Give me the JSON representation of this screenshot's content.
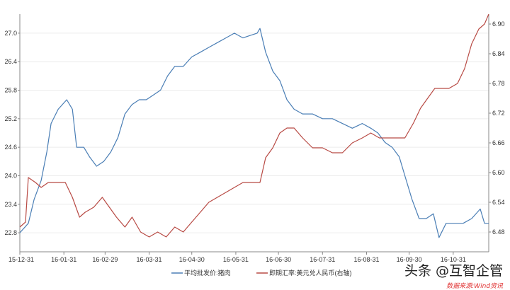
{
  "chart_data": {
    "type": "line",
    "title": "",
    "xlabel": "",
    "ylabel": "",
    "x_start": "2015-12-31",
    "x_end": "2016-11-25",
    "x_tick_labels": [
      "15-12-31",
      "16-01-31",
      "16-02-29",
      "16-03-31",
      "16-04-30",
      "16-05-31",
      "16-06-30",
      "16-07-31",
      "16-08-31",
      "16-09-30",
      "16-10-31"
    ],
    "x_tick_dates": [
      "2015-12-31",
      "2016-01-31",
      "2016-02-29",
      "2016-03-31",
      "2016-04-30",
      "2016-05-31",
      "2016-06-30",
      "2016-07-31",
      "2016-08-31",
      "2016-09-30",
      "2016-10-31"
    ],
    "y_left": {
      "ticks": [
        "22.8",
        "23.4",
        "24.0",
        "24.6",
        "25.2",
        "25.8",
        "26.4",
        "27.0"
      ],
      "range": [
        22.4,
        27.4
      ]
    },
    "y_right": {
      "ticks": [
        "6.48",
        "6.54",
        "6.60",
        "6.66",
        "6.72",
        "6.78",
        "6.84",
        "6.90"
      ],
      "range": [
        6.44,
        6.92
      ]
    },
    "grid": true,
    "legend_position": "bottom",
    "series": [
      {
        "name": "平均批发价:猪肉",
        "axis": "left",
        "color": "#4a7eb5",
        "points": [
          [
            "2015-12-31",
            22.8
          ],
          [
            "2016-01-06",
            23.0
          ],
          [
            "2016-01-10",
            23.5
          ],
          [
            "2016-01-15",
            23.9
          ],
          [
            "2016-01-19",
            24.5
          ],
          [
            "2016-01-22",
            25.1
          ],
          [
            "2016-01-27",
            25.4
          ],
          [
            "2016-02-02",
            25.6
          ],
          [
            "2016-02-06",
            25.4
          ],
          [
            "2016-02-09",
            24.6
          ],
          [
            "2016-02-14",
            24.6
          ],
          [
            "2016-02-18",
            24.4
          ],
          [
            "2016-02-23",
            24.2
          ],
          [
            "2016-02-28",
            24.3
          ],
          [
            "2016-03-04",
            24.5
          ],
          [
            "2016-03-09",
            24.8
          ],
          [
            "2016-03-14",
            25.3
          ],
          [
            "2016-03-19",
            25.5
          ],
          [
            "2016-03-24",
            25.6
          ],
          [
            "2016-03-29",
            25.6
          ],
          [
            "2016-04-03",
            25.7
          ],
          [
            "2016-04-08",
            25.8
          ],
          [
            "2016-04-13",
            26.1
          ],
          [
            "2016-04-18",
            26.3
          ],
          [
            "2016-04-24",
            26.3
          ],
          [
            "2016-04-30",
            26.5
          ],
          [
            "2016-05-06",
            26.6
          ],
          [
            "2016-05-12",
            26.7
          ],
          [
            "2016-05-18",
            26.8
          ],
          [
            "2016-05-24",
            26.9
          ],
          [
            "2016-05-30",
            27.0
          ],
          [
            "2016-06-05",
            26.9
          ],
          [
            "2016-06-10",
            26.95
          ],
          [
            "2016-06-15",
            27.0
          ],
          [
            "2016-06-17",
            27.1
          ],
          [
            "2016-06-21",
            26.6
          ],
          [
            "2016-06-26",
            26.2
          ],
          [
            "2016-07-01",
            26.0
          ],
          [
            "2016-07-06",
            25.6
          ],
          [
            "2016-07-11",
            25.4
          ],
          [
            "2016-07-17",
            25.3
          ],
          [
            "2016-07-24",
            25.3
          ],
          [
            "2016-07-31",
            25.2
          ],
          [
            "2016-08-07",
            25.2
          ],
          [
            "2016-08-14",
            25.1
          ],
          [
            "2016-08-21",
            25.0
          ],
          [
            "2016-08-28",
            25.1
          ],
          [
            "2016-09-03",
            25.0
          ],
          [
            "2016-09-08",
            24.9
          ],
          [
            "2016-09-13",
            24.7
          ],
          [
            "2016-09-18",
            24.6
          ],
          [
            "2016-09-23",
            24.4
          ],
          [
            "2016-09-27",
            24.0
          ],
          [
            "2016-10-02",
            23.5
          ],
          [
            "2016-10-07",
            23.1
          ],
          [
            "2016-10-12",
            23.1
          ],
          [
            "2016-10-17",
            23.2
          ],
          [
            "2016-10-21",
            22.7
          ],
          [
            "2016-10-26",
            23.0
          ],
          [
            "2016-11-01",
            23.0
          ],
          [
            "2016-11-07",
            23.0
          ],
          [
            "2016-11-13",
            23.1
          ],
          [
            "2016-11-19",
            23.3
          ],
          [
            "2016-11-22",
            23.0
          ],
          [
            "2016-11-25",
            23.0
          ]
        ]
      },
      {
        "name": "即期汇率:美元兑人民币(右轴)",
        "axis": "right",
        "color": "#b84a44",
        "points": [
          [
            "2015-12-31",
            6.49
          ],
          [
            "2016-01-04",
            6.5
          ],
          [
            "2016-01-06",
            6.59
          ],
          [
            "2016-01-11",
            6.58
          ],
          [
            "2016-01-15",
            6.57
          ],
          [
            "2016-01-20",
            6.58
          ],
          [
            "2016-01-26",
            6.58
          ],
          [
            "2016-02-01",
            6.58
          ],
          [
            "2016-02-06",
            6.55
          ],
          [
            "2016-02-11",
            6.51
          ],
          [
            "2016-02-15",
            6.52
          ],
          [
            "2016-02-21",
            6.53
          ],
          [
            "2016-02-27",
            6.55
          ],
          [
            "2016-03-03",
            6.53
          ],
          [
            "2016-03-08",
            6.51
          ],
          [
            "2016-03-14",
            6.49
          ],
          [
            "2016-03-19",
            6.51
          ],
          [
            "2016-03-25",
            6.48
          ],
          [
            "2016-03-31",
            6.47
          ],
          [
            "2016-04-06",
            6.48
          ],
          [
            "2016-04-12",
            6.47
          ],
          [
            "2016-04-18",
            6.49
          ],
          [
            "2016-04-24",
            6.48
          ],
          [
            "2016-04-30",
            6.5
          ],
          [
            "2016-05-06",
            6.52
          ],
          [
            "2016-05-12",
            6.54
          ],
          [
            "2016-05-18",
            6.55
          ],
          [
            "2016-05-24",
            6.56
          ],
          [
            "2016-05-30",
            6.57
          ],
          [
            "2016-06-05",
            6.58
          ],
          [
            "2016-06-11",
            6.58
          ],
          [
            "2016-06-17",
            6.58
          ],
          [
            "2016-06-21",
            6.63
          ],
          [
            "2016-06-26",
            6.65
          ],
          [
            "2016-07-01",
            6.68
          ],
          [
            "2016-07-06",
            6.69
          ],
          [
            "2016-07-11",
            6.69
          ],
          [
            "2016-07-17",
            6.67
          ],
          [
            "2016-07-24",
            6.65
          ],
          [
            "2016-07-31",
            6.65
          ],
          [
            "2016-08-07",
            6.64
          ],
          [
            "2016-08-14",
            6.64
          ],
          [
            "2016-08-21",
            6.66
          ],
          [
            "2016-08-28",
            6.67
          ],
          [
            "2016-09-03",
            6.68
          ],
          [
            "2016-09-09",
            6.67
          ],
          [
            "2016-09-15",
            6.67
          ],
          [
            "2016-09-21",
            6.67
          ],
          [
            "2016-09-27",
            6.67
          ],
          [
            "2016-10-03",
            6.7
          ],
          [
            "2016-10-08",
            6.73
          ],
          [
            "2016-10-13",
            6.75
          ],
          [
            "2016-10-18",
            6.77
          ],
          [
            "2016-10-23",
            6.77
          ],
          [
            "2016-10-28",
            6.77
          ],
          [
            "2016-11-03",
            6.78
          ],
          [
            "2016-11-08",
            6.81
          ],
          [
            "2016-11-13",
            6.86
          ],
          [
            "2016-11-18",
            6.89
          ],
          [
            "2016-11-22",
            6.9
          ],
          [
            "2016-11-25",
            6.92
          ]
        ]
      }
    ]
  },
  "watermark": {
    "main": "头条 @互智企管",
    "sub": "数据来源:Wind资讯"
  }
}
